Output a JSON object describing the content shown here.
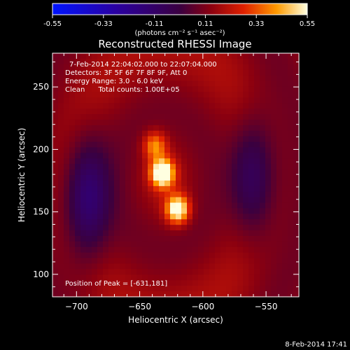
{
  "chart_data": {
    "type": "heatmap",
    "title": "Reconstructed RHESSI Image",
    "xlabel": "Heliocentric X (arcsec)",
    "ylabel": "Heliocentric Y (arcsec)",
    "xlim": [
      -719,
      -524
    ],
    "ylim": [
      82,
      277
    ],
    "xticks": [
      -700,
      -650,
      -600,
      -550
    ],
    "yticks": [
      100,
      150,
      200,
      250
    ],
    "colorbar": {
      "range": [
        -0.55,
        0.55
      ],
      "ticks": [
        "-0.55",
        "-0.33",
        "-0.11",
        "0.11",
        "0.33",
        "0.55"
      ],
      "unit_label": "(photons cm⁻² s⁻¹ asec⁻²)"
    },
    "annotations": {
      "time_range": "7-Feb-2014 22:04:02.000 to 22:07:04.000",
      "detectors": "Detectors: 3F 5F 6F 7F 8F 9F, Att 0",
      "energy": "Energy Range: 3.0 - 6.0 keV",
      "algorithm": "Clean      Total counts: 1.00E+05",
      "peak": "Position of Peak = [-631,181]"
    },
    "peak_position": [
      -631,
      181
    ],
    "sources": [
      {
        "x": -632,
        "y": 181,
        "amplitude": 0.55
      },
      {
        "x": -620,
        "y": 152,
        "amplitude": 0.5
      },
      {
        "x": -638,
        "y": 203,
        "amplitude": 0.28
      }
    ],
    "negative_regions": [
      {
        "x": -692,
        "y": 160,
        "amplitude": -0.3
      },
      {
        "x": -560,
        "y": 178,
        "amplitude": -0.25
      }
    ]
  },
  "footer": {
    "timestamp": "8-Feb-2014 17:41"
  }
}
